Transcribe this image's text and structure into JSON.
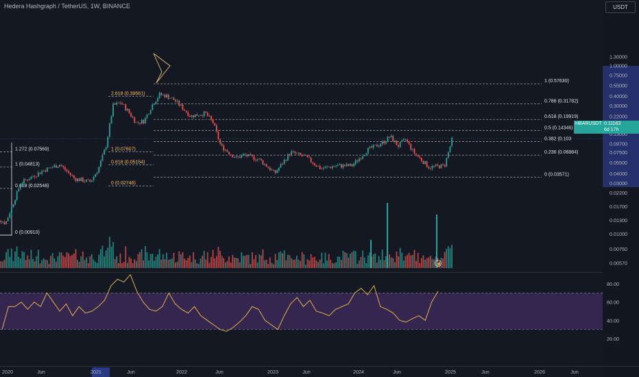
{
  "header": {
    "title": "Hedera Hashgraph / TetherUS, 1W, BINANCE",
    "currency": "USDT"
  },
  "price_tag": {
    "symbol": "HBARUSDT",
    "price": "0.11163",
    "countdown": "6d 17h"
  },
  "colors": {
    "background": "#141823",
    "up": "#26a69a",
    "down": "#ef5350",
    "fib_line": "#9598a1",
    "fib_gold": "#f0c26b",
    "rsi_line": "#e0b54a",
    "rsi_band": "#3c2a5a",
    "axis_highlight": "#2a3a86"
  },
  "chart_data": [
    {
      "type": "candlestick",
      "title": "Hedera Hashgraph / TetherUS, 1W, BINANCE",
      "y_scale": "log",
      "y_ticks": [
        "1.30000",
        "1.00000",
        "0.75000",
        "0.55000",
        "0.40000",
        "0.30000",
        "0.22000",
        "0.17000",
        "0.13000",
        "0.09700",
        "0.07500",
        "0.05500",
        "0.04000",
        "0.03000",
        "0.02200",
        "0.01700",
        "0.01300",
        "0.01000",
        "0.00750",
        "0.00570"
      ],
      "x_ticks": [
        "2020",
        "Jun",
        "2021",
        "Jun",
        "2022",
        "Jun",
        "2023",
        "Jun",
        "2024",
        "Jun",
        "2025",
        "Jun",
        "2026",
        "Jun"
      ],
      "highlighted_x_tick": "2021",
      "current_price": 0.11163,
      "price_path": [
        [
          "2019-11",
          0.012
        ],
        [
          "2020-01",
          0.009
        ],
        [
          "2020-03",
          0.03
        ],
        [
          "2020-06",
          0.044
        ],
        [
          "2020-08",
          0.052
        ],
        [
          "2020-10",
          0.034
        ],
        [
          "2020-12",
          0.031
        ],
        [
          "2021-01",
          0.045
        ],
        [
          "2021-02",
          0.09
        ],
        [
          "2021-03",
          0.3
        ],
        [
          "2021-04",
          0.33
        ],
        [
          "2021-05",
          0.25
        ],
        [
          "2021-06",
          0.18
        ],
        [
          "2021-07",
          0.19
        ],
        [
          "2021-08",
          0.3
        ],
        [
          "2021-09",
          0.42
        ],
        [
          "2021-10",
          0.4
        ],
        [
          "2021-11",
          0.35
        ],
        [
          "2021-12",
          0.28
        ],
        [
          "2022-01",
          0.22
        ],
        [
          "2022-03",
          0.24
        ],
        [
          "2022-04",
          0.18
        ],
        [
          "2022-05",
          0.09
        ],
        [
          "2022-07",
          0.063
        ],
        [
          "2022-08",
          0.069
        ],
        [
          "2022-10",
          0.06
        ],
        [
          "2022-12",
          0.04
        ],
        [
          "2023-02",
          0.075
        ],
        [
          "2023-04",
          0.065
        ],
        [
          "2023-06",
          0.046
        ],
        [
          "2023-08",
          0.05
        ],
        [
          "2023-10",
          0.05
        ],
        [
          "2023-12",
          0.08
        ],
        [
          "2024-02",
          0.1
        ],
        [
          "2024-03",
          0.12
        ],
        [
          "2024-04",
          0.09
        ],
        [
          "2024-05",
          0.11
        ],
        [
          "2024-06",
          0.075
        ],
        [
          "2024-08",
          0.048
        ],
        [
          "2024-10",
          0.05
        ],
        [
          "2024-11",
          0.11163
        ]
      ],
      "fib_levels": [
        {
          "label": "1 (0.57630)",
          "value": 0.5763,
          "style": "white"
        },
        {
          "label": "0.786 (0.31782)",
          "value": 0.31782,
          "style": "white"
        },
        {
          "label": "0.618 (0.19919)",
          "value": 0.19919,
          "style": "white"
        },
        {
          "label": "0.5 (0.14346)",
          "value": 0.14346,
          "style": "white"
        },
        {
          "label": "0.382 (0.10316)",
          "value": 0.10316,
          "style": "white"
        },
        {
          "label": "0.236 (0.06884)",
          "value": 0.06884,
          "style": "white"
        },
        {
          "label": "0 (0.03571)",
          "value": 0.03571,
          "style": "white"
        },
        {
          "label": "2.618 (0.39561)",
          "value": 0.39561,
          "style": "gold"
        },
        {
          "label": "1 (0.07607)",
          "value": 0.07607,
          "style": "gold"
        },
        {
          "label": "0.618 (0.05154)",
          "value": 0.05154,
          "style": "gold"
        },
        {
          "label": "0 (0.02746)",
          "value": 0.02746,
          "style": "gold"
        },
        {
          "label": "1.272 (0.07569)",
          "value": 0.07569,
          "style": "white"
        },
        {
          "label": "1 (0.04813)",
          "value": 0.04813,
          "style": "white"
        },
        {
          "label": "0.618 (0.02548)",
          "value": 0.02548,
          "style": "white"
        },
        {
          "label": "0 (0.00910)",
          "value": 0.0091,
          "style": "white"
        }
      ]
    },
    {
      "type": "line",
      "series": [
        {
          "values": [
            30,
            55,
            55,
            60,
            52,
            60,
            55,
            70,
            60,
            50,
            58,
            45,
            55,
            48,
            50,
            55,
            62,
            78,
            85,
            82,
            90,
            72,
            60,
            52,
            50,
            55,
            70,
            58,
            52,
            48,
            55,
            45,
            40,
            35,
            30,
            28,
            32,
            38,
            45,
            55,
            52,
            40,
            35,
            30,
            45,
            58,
            65,
            55,
            62,
            50,
            48,
            45,
            52,
            55,
            58,
            70,
            75,
            68,
            78,
            55,
            52,
            48,
            40,
            38,
            42,
            45,
            40,
            60,
            72
          ]
        }
      ],
      "y_ticks": [
        "80.00",
        "60.00",
        "40.00",
        "20.00"
      ],
      "ylim": [
        20,
        90
      ],
      "band": [
        30,
        70
      ]
    }
  ]
}
